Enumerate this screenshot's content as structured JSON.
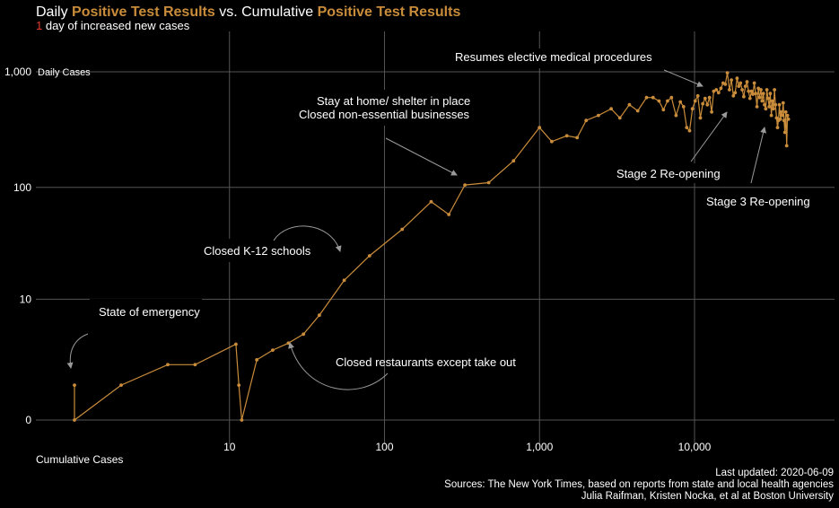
{
  "title": {
    "part1": "Daily ",
    "hl1": "Positive Test Results",
    "part2": " vs. Cumulative ",
    "hl2": "Positive Test Results"
  },
  "subtitle": {
    "number": "1",
    "text": " day of increased new cases"
  },
  "footer": {
    "updated": "Last updated: 2020-06-09",
    "sources": "Sources: The New York Times, based on reports from state and local health agencies",
    "authors": "Julia Raifman,  Kristen Nocka, et al at Boston University"
  },
  "colors": {
    "line": "#c98c3a",
    "grid": "#555555",
    "highlight": "#e23a2e",
    "annotation": "#9a9a9a"
  },
  "chart_data": {
    "type": "line",
    "xscale": "log",
    "yscale": "log",
    "xlabel": "Cumulative Cases",
    "ylabel": "Daily Cases",
    "x_ticks": [
      10,
      100,
      1000,
      10000
    ],
    "x_tick_labels": [
      "10",
      "100",
      "1,000",
      "10,000"
    ],
    "y_ticks": [
      0,
      10,
      100,
      1000
    ],
    "y_tick_labels": [
      "0",
      "10",
      "100",
      "1,000"
    ],
    "xlim": [
      1,
      80000
    ],
    "ylim": [
      0,
      1500
    ],
    "grid": true,
    "series": [
      {
        "points": [
          [
            1,
            1
          ],
          [
            1,
            0
          ],
          [
            2,
            1
          ],
          [
            4,
            2
          ],
          [
            6,
            2
          ],
          [
            11,
            3.5
          ],
          [
            11.5,
            1
          ],
          [
            12,
            0
          ],
          [
            15,
            2.3
          ],
          [
            19,
            3
          ],
          [
            24,
            3.6
          ],
          [
            30,
            4.5
          ],
          [
            38,
            7
          ],
          [
            55,
            15
          ],
          [
            80,
            25
          ],
          [
            130,
            43
          ],
          [
            200,
            75
          ],
          [
            260,
            58
          ],
          [
            330,
            105
          ],
          [
            470,
            110
          ],
          [
            680,
            170
          ],
          [
            1000,
            330
          ],
          [
            1200,
            250
          ],
          [
            1500,
            280
          ],
          [
            1750,
            270
          ],
          [
            2000,
            380
          ],
          [
            2400,
            420
          ],
          [
            2900,
            480
          ],
          [
            3300,
            400
          ],
          [
            3800,
            520
          ],
          [
            4300,
            460
          ],
          [
            4900,
            600
          ],
          [
            5400,
            600
          ],
          [
            5900,
            560
          ],
          [
            6300,
            470
          ],
          [
            6700,
            560
          ],
          [
            7100,
            600
          ],
          [
            7600,
            420
          ],
          [
            8100,
            550
          ],
          [
            8500,
            500
          ],
          [
            8900,
            330
          ],
          [
            9300,
            310
          ],
          [
            9700,
            480
          ],
          [
            10100,
            560
          ],
          [
            10500,
            620
          ],
          [
            10900,
            400
          ],
          [
            11300,
            530
          ],
          [
            11700,
            590
          ],
          [
            12100,
            520
          ],
          [
            12500,
            600
          ],
          [
            12900,
            450
          ],
          [
            13300,
            680
          ],
          [
            13800,
            700
          ],
          [
            14300,
            660
          ],
          [
            14800,
            720
          ],
          [
            15300,
            800
          ],
          [
            15800,
            780
          ],
          [
            16300,
            980
          ],
          [
            16800,
            700
          ],
          [
            17300,
            850
          ],
          [
            17800,
            620
          ],
          [
            18300,
            660
          ],
          [
            18800,
            880
          ],
          [
            19300,
            750
          ],
          [
            19800,
            800
          ],
          [
            20300,
            700
          ],
          [
            20800,
            610
          ],
          [
            21300,
            750
          ],
          [
            21800,
            820
          ],
          [
            22300,
            680
          ],
          [
            22800,
            590
          ],
          [
            23300,
            680
          ],
          [
            23800,
            640
          ],
          [
            24300,
            800
          ],
          [
            24800,
            650
          ],
          [
            25300,
            500
          ],
          [
            25800,
            720
          ],
          [
            26300,
            600
          ],
          [
            26800,
            700
          ],
          [
            27300,
            560
          ],
          [
            27800,
            650
          ],
          [
            28300,
            520
          ],
          [
            28800,
            480
          ],
          [
            29300,
            700
          ],
          [
            29800,
            590
          ],
          [
            30300,
            500
          ],
          [
            30800,
            650
          ],
          [
            31300,
            420
          ],
          [
            31800,
            560
          ],
          [
            32300,
            480
          ],
          [
            32800,
            700
          ],
          [
            33300,
            520
          ],
          [
            33800,
            400
          ],
          [
            34300,
            330
          ],
          [
            34800,
            380
          ],
          [
            35300,
            520
          ],
          [
            35800,
            390
          ],
          [
            36300,
            450
          ],
          [
            36800,
            420
          ],
          [
            37300,
            540
          ],
          [
            37800,
            380
          ],
          [
            38300,
            300
          ],
          [
            38800,
            450
          ],
          [
            39300,
            230
          ],
          [
            39800,
            420
          ],
          [
            40300,
            390
          ]
        ]
      }
    ],
    "annotations": [
      "State of emergency",
      "Closed K-12 schools",
      "Closed restaurants except take out",
      "Stay at home/ shelter in place",
      "Closed non-essential businesses",
      "Resumes elective medical procedures",
      "Stage 2 Re-opening",
      "Stage 3 Re-opening"
    ]
  }
}
